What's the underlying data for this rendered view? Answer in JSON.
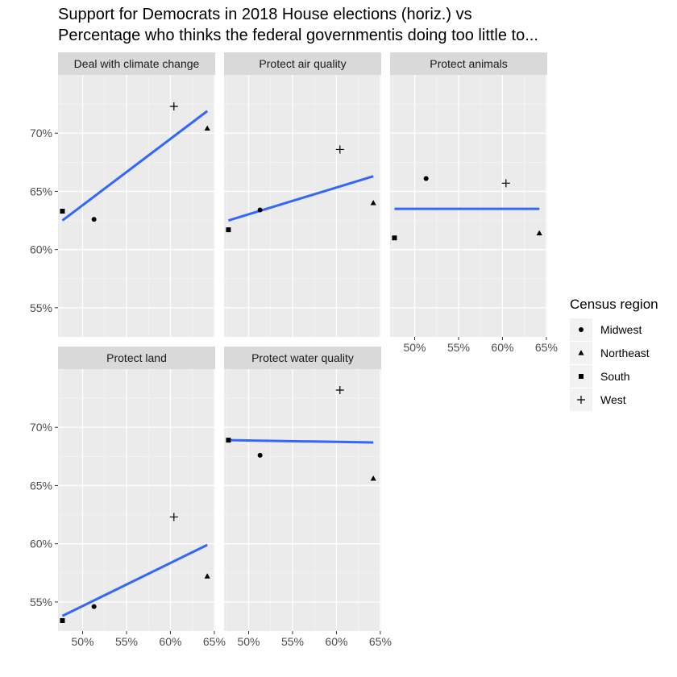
{
  "chart_data": {
    "type": "scatter",
    "title": [
      "Support for Democrats in 2018 House elections (horiz.) vs",
      "Percentage who thinks the federal governmentis doing too little to..."
    ],
    "xlabel": "",
    "ylabel": "",
    "x_ticks": [
      "50%",
      "55%",
      "60%",
      "65%"
    ],
    "y_ticks": [
      "55%",
      "60%",
      "65%",
      "70%"
    ],
    "xlim": [
      47.2,
      65.1
    ],
    "ylim": [
      52.5,
      75.0
    ],
    "grid": true,
    "legend": {
      "title": "Census region",
      "position": "right",
      "entries": [
        {
          "label": "Midwest",
          "shape": "circle"
        },
        {
          "label": "Northeast",
          "shape": "triangle"
        },
        {
          "label": "South",
          "shape": "square"
        },
        {
          "label": "West",
          "shape": "plus"
        }
      ]
    },
    "trend_color": "#3366FF",
    "panels": [
      {
        "name": "Deal with climate change",
        "points": [
          {
            "region": "Midwest",
            "x": 51.3,
            "y": 62.6
          },
          {
            "region": "Northeast",
            "x": 64.2,
            "y": 70.4
          },
          {
            "region": "South",
            "x": 47.7,
            "y": 63.3
          },
          {
            "region": "West",
            "x": 60.4,
            "y": 72.3
          }
        ],
        "trend": [
          [
            47.7,
            62.5
          ],
          [
            64.2,
            71.9
          ]
        ]
      },
      {
        "name": "Protect air quality",
        "points": [
          {
            "region": "Midwest",
            "x": 51.3,
            "y": 63.4
          },
          {
            "region": "Northeast",
            "x": 64.2,
            "y": 64.0
          },
          {
            "region": "South",
            "x": 47.7,
            "y": 61.7
          },
          {
            "region": "West",
            "x": 60.4,
            "y": 68.6
          }
        ],
        "trend": [
          [
            47.7,
            62.5
          ],
          [
            64.2,
            66.3
          ]
        ]
      },
      {
        "name": "Protect animals",
        "points": [
          {
            "region": "Midwest",
            "x": 51.3,
            "y": 66.1
          },
          {
            "region": "Northeast",
            "x": 64.2,
            "y": 61.4
          },
          {
            "region": "South",
            "x": 47.7,
            "y": 61.0
          },
          {
            "region": "West",
            "x": 60.4,
            "y": 65.7
          }
        ],
        "trend": [
          [
            47.7,
            63.5
          ],
          [
            64.2,
            63.5
          ]
        ]
      },
      {
        "name": "Protect land",
        "points": [
          {
            "region": "Midwest",
            "x": 51.3,
            "y": 54.6
          },
          {
            "region": "Northeast",
            "x": 64.2,
            "y": 57.2
          },
          {
            "region": "South",
            "x": 47.7,
            "y": 53.4
          },
          {
            "region": "West",
            "x": 60.4,
            "y": 62.3
          }
        ],
        "trend": [
          [
            47.7,
            53.8
          ],
          [
            64.2,
            59.9
          ]
        ]
      },
      {
        "name": "Protect water quality",
        "points": [
          {
            "region": "Midwest",
            "x": 51.3,
            "y": 67.6
          },
          {
            "region": "Northeast",
            "x": 64.2,
            "y": 65.6
          },
          {
            "region": "South",
            "x": 47.7,
            "y": 68.9
          },
          {
            "region": "West",
            "x": 60.4,
            "y": 73.2
          }
        ],
        "trend": [
          [
            47.7,
            68.9
          ],
          [
            64.2,
            68.7
          ]
        ]
      }
    ]
  }
}
